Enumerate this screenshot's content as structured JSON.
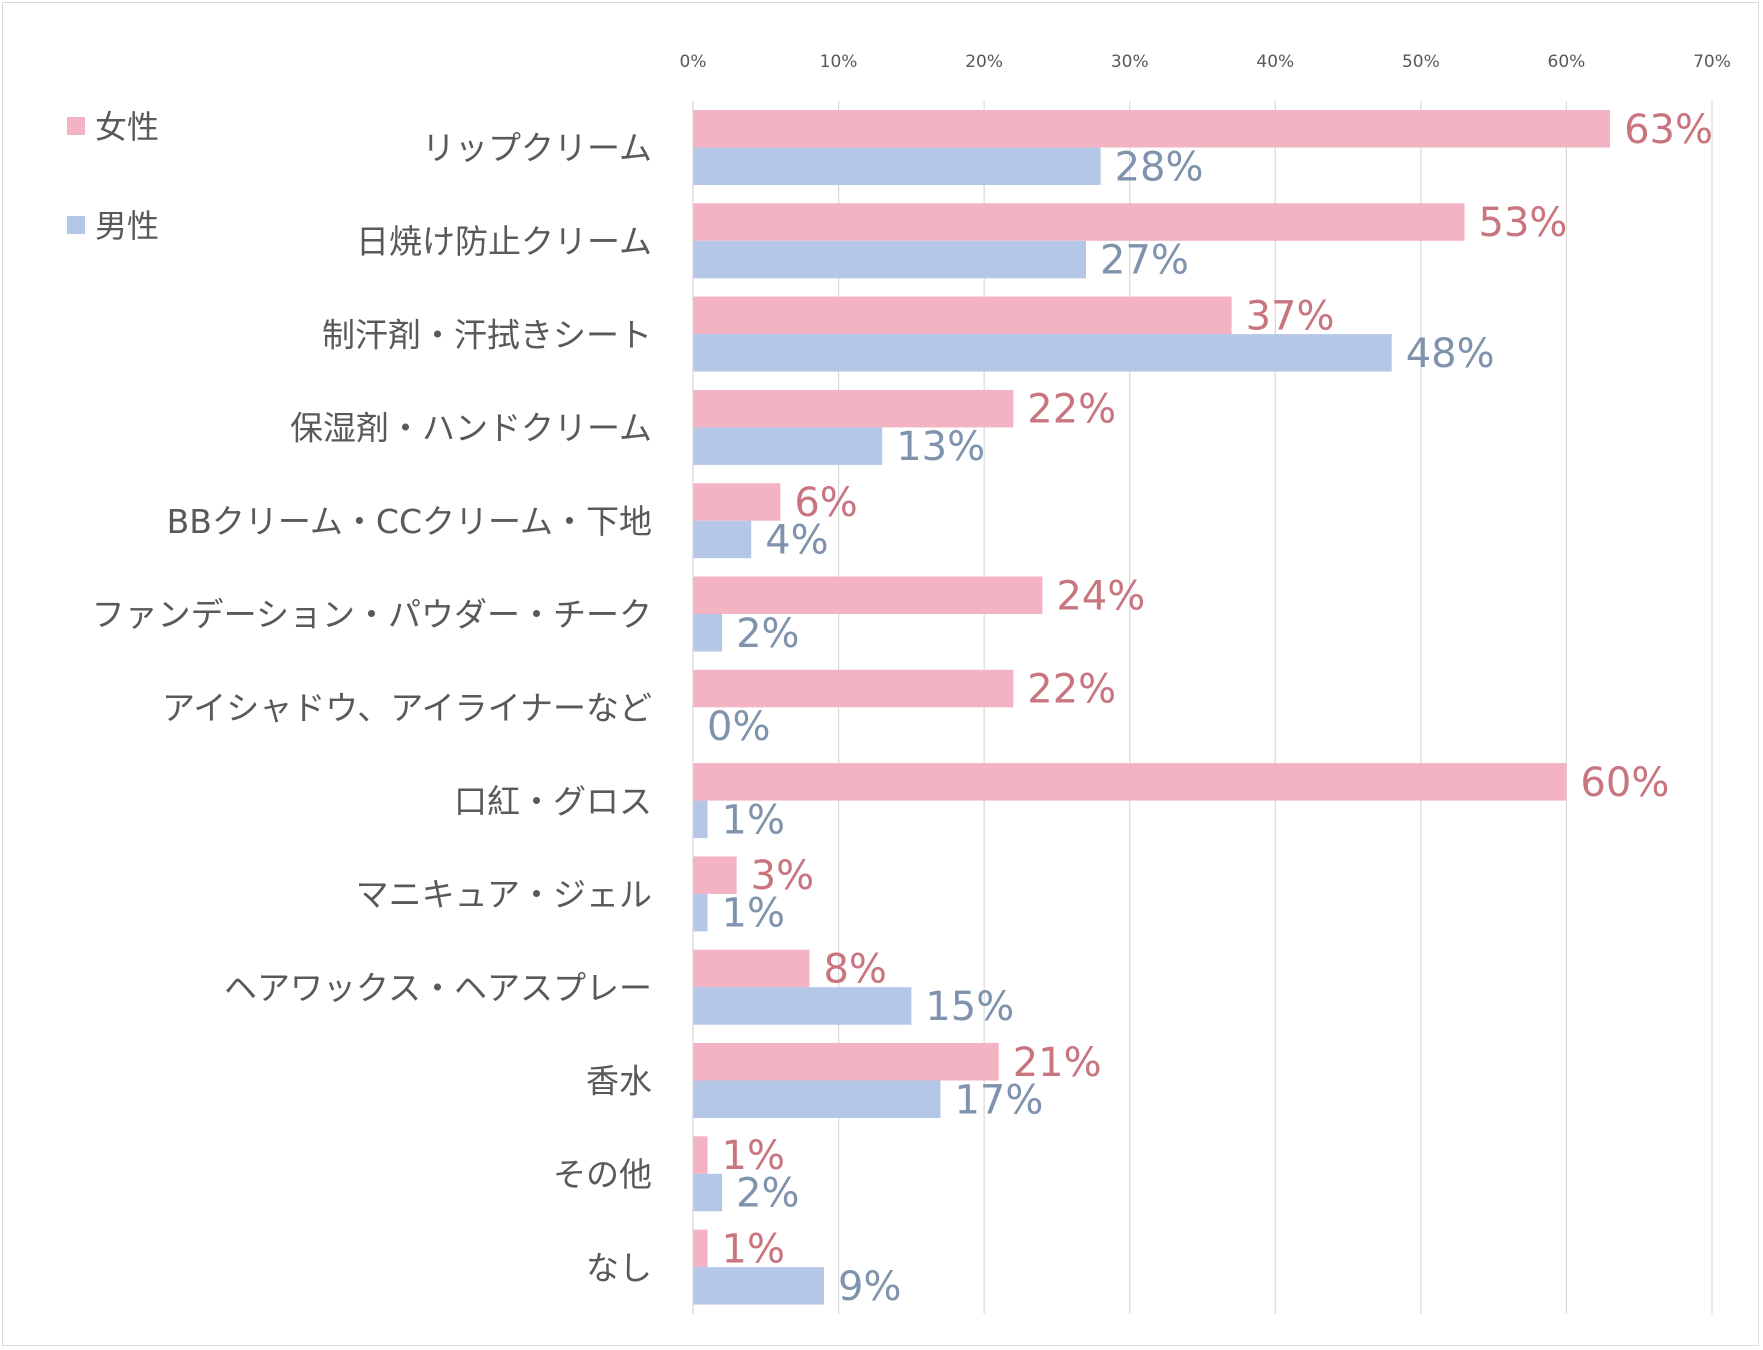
{
  "chart_data": {
    "type": "bar",
    "orientation": "horizontal",
    "categories": [
      "リップクリーム",
      "日焼け防止クリーム",
      "制汗剤・汗拭きシート",
      "保湿剤・ハンドクリーム",
      "BBクリーム・CCクリーム・下地",
      "ファンデーション・パウダー・チーク",
      "アイシャドウ、アイライナーなど",
      "口紅・グロス",
      "マニキュア・ジェル",
      "ヘアワックス・ヘアスプレー",
      "香水",
      "その他",
      "なし"
    ],
    "series": [
      {
        "name": "女性",
        "color": "#F4B3C2",
        "label_color": "#C9757F",
        "values": [
          63,
          53,
          37,
          22,
          6,
          24,
          22,
          60,
          3,
          8,
          21,
          1,
          1
        ]
      },
      {
        "name": "男性",
        "color": "#B4C7E7",
        "label_color": "#7F93AD",
        "values": [
          28,
          27,
          48,
          13,
          4,
          2,
          0,
          1,
          1,
          15,
          17,
          2,
          9
        ]
      }
    ],
    "value_unit": "%",
    "xlim": [
      0,
      70
    ],
    "x_ticks": [
      "0%",
      "10%",
      "20%",
      "30%",
      "40%",
      "50%",
      "60%",
      "70%"
    ],
    "x_axis_position": "top",
    "grid": true,
    "legend_position": "top-left"
  }
}
